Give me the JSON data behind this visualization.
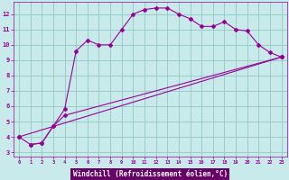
{
  "xlabel": "Windchill (Refroidissement éolien,°C)",
  "xlim": [
    -0.5,
    23.5
  ],
  "ylim": [
    2.7,
    12.8
  ],
  "yticks": [
    3,
    4,
    5,
    6,
    7,
    8,
    9,
    10,
    11,
    12
  ],
  "xticks": [
    0,
    1,
    2,
    3,
    4,
    5,
    6,
    7,
    8,
    9,
    10,
    11,
    12,
    13,
    14,
    15,
    16,
    17,
    18,
    19,
    20,
    21,
    22,
    23
  ],
  "line_color": "#990099",
  "bg_color": "#c8eaea",
  "grid_color": "#99cccc",
  "xlabel_bg": "#660066",
  "line1_x": [
    0,
    1,
    2,
    3,
    4,
    5,
    6,
    7,
    8,
    9,
    10,
    11,
    12,
    13,
    14,
    15,
    16,
    17,
    18,
    19,
    20,
    21,
    22,
    23
  ],
  "line1_y": [
    4.0,
    3.5,
    3.6,
    4.7,
    5.8,
    9.6,
    10.3,
    10.0,
    10.0,
    11.0,
    12.0,
    12.3,
    12.4,
    12.4,
    12.0,
    11.7,
    11.2,
    11.2,
    11.5,
    11.0,
    10.9,
    10.0,
    9.5,
    9.2
  ],
  "line2_x": [
    1,
    2,
    3,
    4,
    23
  ],
  "line2_y": [
    3.5,
    3.6,
    4.7,
    5.4,
    9.2
  ],
  "line3_x": [
    0,
    23
  ],
  "line3_y": [
    4.0,
    9.2
  ]
}
